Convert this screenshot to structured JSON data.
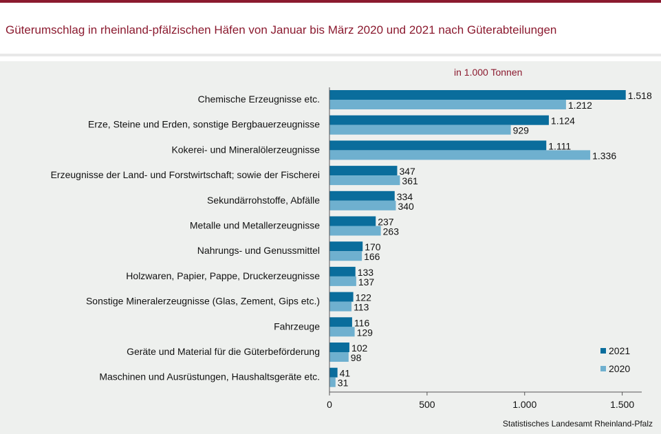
{
  "title": "Güterumschlag in rheinland-pfälzischen Häfen von Januar bis März 2020 und 2021 nach Güterabteilungen",
  "unit_label": "in 1.000 Tonnen",
  "source": "Statistisches Landesamt Rheinland-Pfalz",
  "colors": {
    "brand": "#8b1a2f",
    "series_2021": "#0a6d9c",
    "series_2020": "#6fb0cf",
    "plot_bg": "#eef0ee"
  },
  "chart_data": {
    "type": "bar",
    "orientation": "horizontal",
    "title": "Güterumschlag in rheinland-pfälzischen Häfen von Januar bis März 2020 und 2021 nach Güterabteilungen",
    "xlabel": "in 1.000 Tonnen",
    "ylabel": "",
    "xlim": [
      0,
      1600
    ],
    "xticks": [
      0,
      500,
      1000,
      1500
    ],
    "xtick_labels": [
      "0",
      "500",
      "1.000",
      "1.500"
    ],
    "grid": false,
    "legend_position": "bottom-right",
    "categories": [
      "Chemische Erzeugnisse etc.",
      "Erze, Steine und Erden, sonstige Bergbauerzeugnisse",
      "Kokerei- und Mineralölerzeugnisse",
      "Erzeugnisse der Land- und Forstwirtschaft; sowie der Fischerei",
      "Sekundärrohstoffe, Abfälle",
      "Metalle und Metallerzeugnisse",
      "Nahrungs- und Genussmittel",
      "Holzwaren, Papier, Pappe, Druckerzeugnisse",
      "Sonstige Mineralerzeugnisse (Glas, Zement, Gips etc.)",
      "Fahrzeuge",
      "Geräte und Material für die Güterbeförderung",
      "Maschinen und Ausrüstungen, Haushaltsgeräte etc."
    ],
    "series": [
      {
        "name": "2021",
        "color": "#0a6d9c",
        "values": [
          1518,
          1124,
          1111,
          347,
          334,
          237,
          170,
          133,
          122,
          116,
          102,
          41
        ],
        "labels": [
          "1.518",
          "1.124",
          "1.111",
          "347",
          "334",
          "237",
          "170",
          "133",
          "122",
          "116",
          "102",
          "41"
        ]
      },
      {
        "name": "2020",
        "color": "#6fb0cf",
        "values": [
          1212,
          929,
          1336,
          361,
          340,
          263,
          166,
          137,
          113,
          129,
          98,
          31
        ],
        "labels": [
          "1.212",
          "929",
          "1.336",
          "361",
          "340",
          "263",
          "166",
          "137",
          "113",
          "129",
          "98",
          "31"
        ]
      }
    ]
  }
}
